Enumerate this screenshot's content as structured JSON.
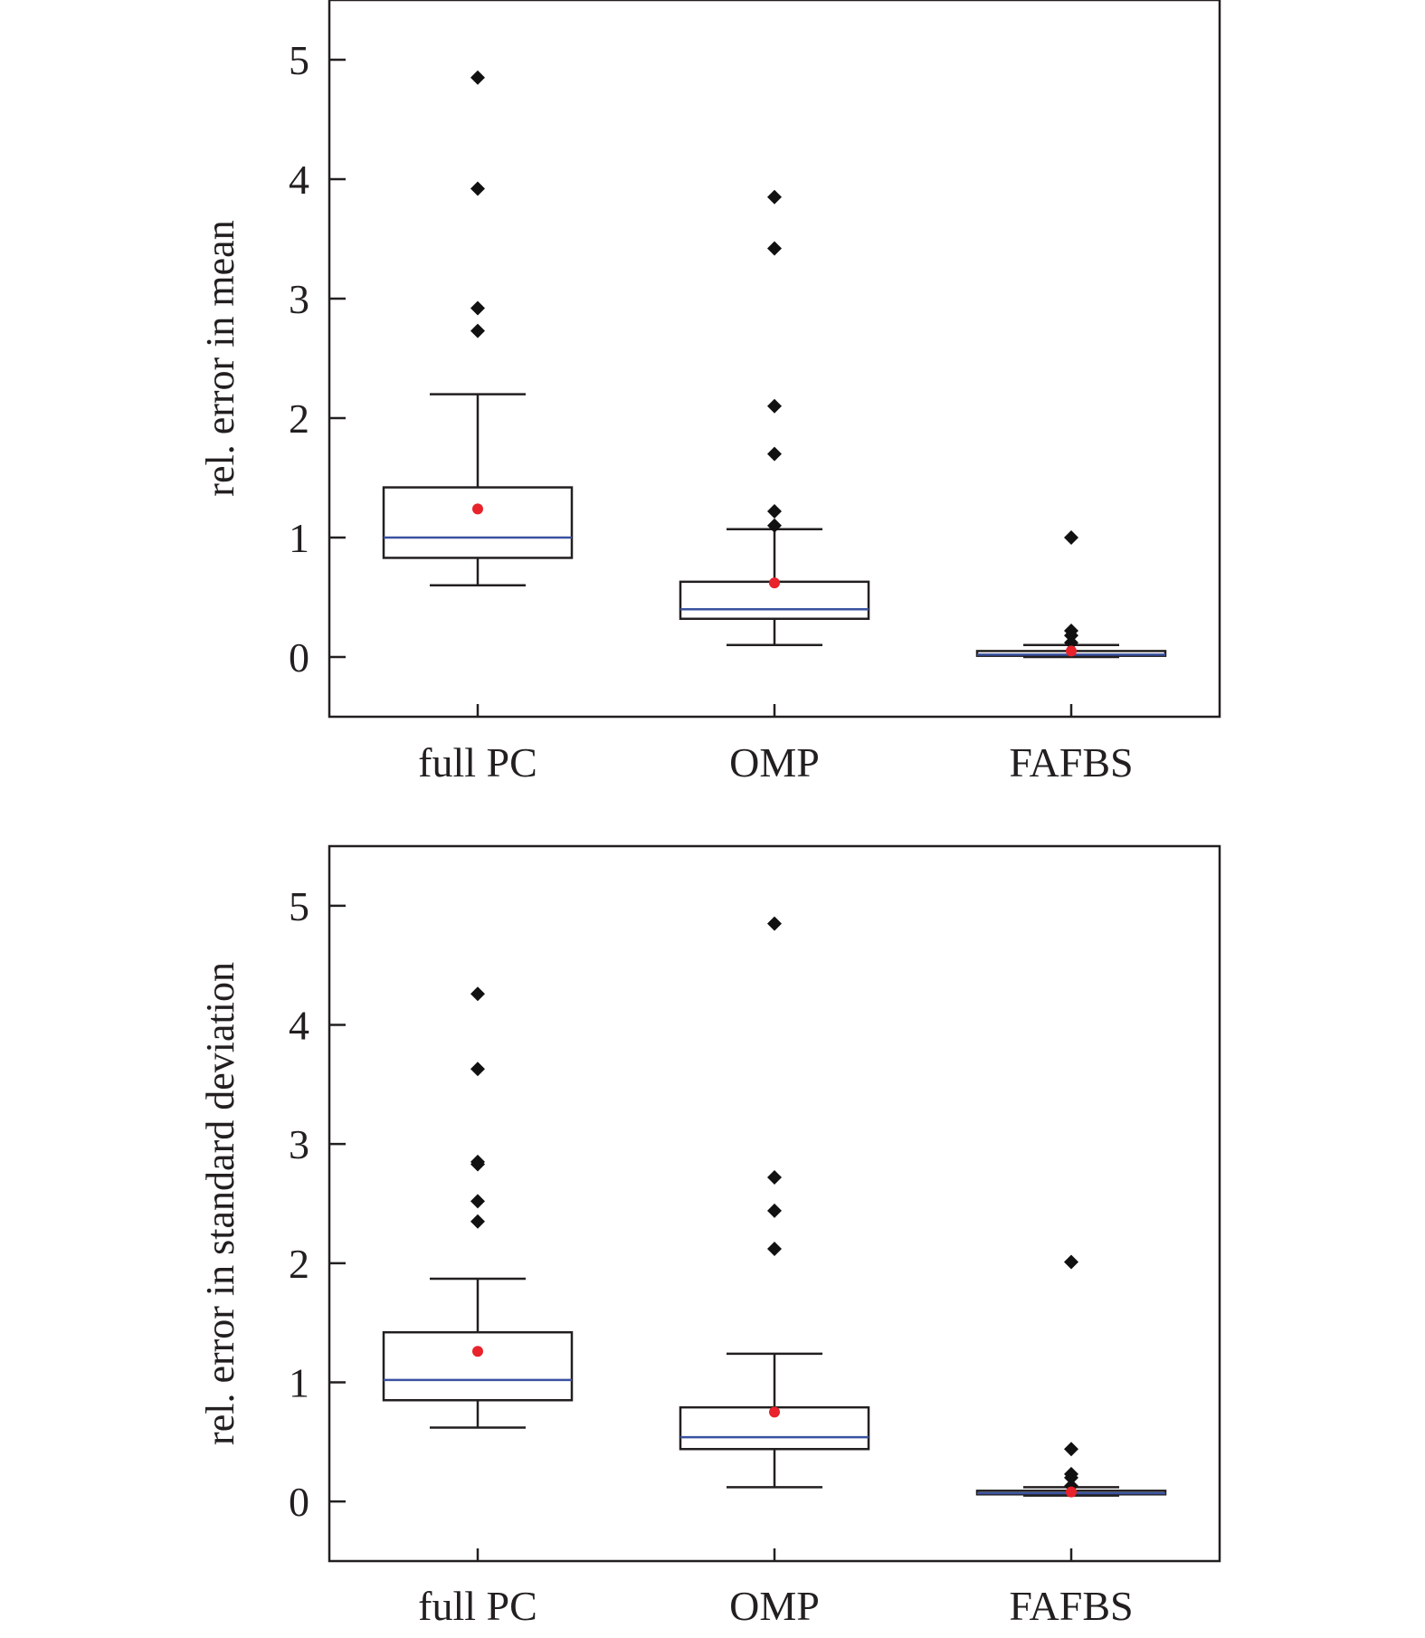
{
  "chart_data": [
    {
      "type": "box",
      "title": "",
      "xlabel": "",
      "ylabel": "rel. error in mean",
      "ylim": [
        -0.5,
        5.5
      ],
      "yticks": [
        0,
        1,
        2,
        3,
        4,
        5
      ],
      "categories": [
        "full PC",
        "OMP",
        "FAFBS"
      ],
      "boxes": [
        {
          "category": "full PC",
          "whisker_low": 0.6,
          "q1": 0.83,
          "median": 1.0,
          "q3": 1.42,
          "whisker_high": 2.2,
          "mean": 1.24,
          "outliers": [
            2.73,
            2.92,
            3.92,
            4.85
          ]
        },
        {
          "category": "OMP",
          "whisker_low": 0.1,
          "q1": 0.32,
          "median": 0.4,
          "q3": 0.63,
          "whisker_high": 1.07,
          "mean": 0.62,
          "outliers": [
            1.1,
            1.22,
            1.7,
            2.1,
            3.42,
            3.85
          ]
        },
        {
          "category": "FAFBS",
          "whisker_low": 0.0,
          "q1": 0.01,
          "median": 0.02,
          "q3": 0.05,
          "whisker_high": 0.1,
          "mean": 0.05,
          "outliers": [
            0.12,
            0.18,
            0.22,
            1.0
          ]
        }
      ],
      "colors": {
        "median": "#3a52a0",
        "mean": "#e8232b",
        "outlier": "#111111",
        "box": "#231f20"
      }
    },
    {
      "type": "box",
      "title": "",
      "xlabel": "",
      "ylabel": "rel. error in standard deviation",
      "ylim": [
        -0.5,
        5.5
      ],
      "yticks": [
        0,
        1,
        2,
        3,
        4,
        5
      ],
      "categories": [
        "full PC",
        "OMP",
        "FAFBS"
      ],
      "boxes": [
        {
          "category": "full PC",
          "whisker_low": 0.62,
          "q1": 0.85,
          "median": 1.02,
          "q3": 1.42,
          "whisker_high": 1.87,
          "mean": 1.26,
          "outliers": [
            2.35,
            2.52,
            2.83,
            2.85,
            3.63,
            4.26
          ]
        },
        {
          "category": "OMP",
          "whisker_low": 0.12,
          "q1": 0.44,
          "median": 0.54,
          "q3": 0.79,
          "whisker_high": 1.24,
          "mean": 0.75,
          "outliers": [
            2.12,
            2.44,
            2.72,
            4.85
          ]
        },
        {
          "category": "FAFBS",
          "whisker_low": 0.05,
          "q1": 0.06,
          "median": 0.07,
          "q3": 0.09,
          "whisker_high": 0.12,
          "mean": 0.08,
          "outliers": [
            0.13,
            0.2,
            0.23,
            0.44,
            2.01
          ]
        }
      ],
      "colors": {
        "median": "#3a52a0",
        "mean": "#e8232b",
        "outlier": "#111111",
        "box": "#231f20"
      }
    }
  ]
}
